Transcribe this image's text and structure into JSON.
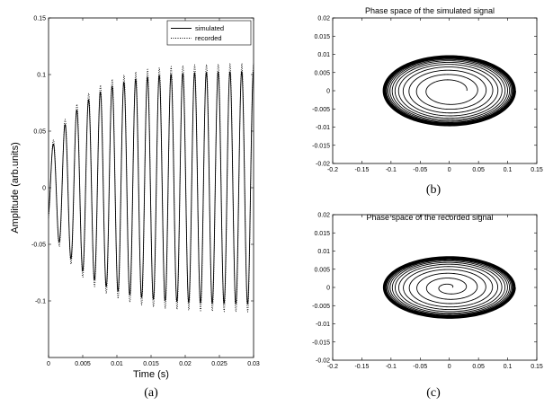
{
  "chart_data": [
    {
      "id": "a",
      "type": "line",
      "caption": "(a)",
      "title": "",
      "xlabel": "Time (s)",
      "ylabel": "Amplitude (arb.units)",
      "xlim": [
        0,
        0.03
      ],
      "ylim": [
        -0.15,
        0.15
      ],
      "xticks": [
        "0",
        "0.005",
        "0.01",
        "0.015",
        "0.02",
        "0.025",
        "0.03"
      ],
      "yticks": [
        "-0.1",
        "-0.05",
        "0",
        "0.05",
        "0.1",
        "0.15"
      ],
      "legend_position": "top-right",
      "series": [
        {
          "name": "simulated",
          "style": "solid",
          "frequency_hz": 580,
          "envelope_start": 0.03,
          "envelope_final": 0.103,
          "envelope_tau_s": 0.0055
        },
        {
          "name": "recorded",
          "style": "dotted",
          "frequency_hz": 580,
          "envelope_start": 0.033,
          "envelope_final": 0.11,
          "envelope_tau_s": 0.0055
        }
      ]
    },
    {
      "id": "b",
      "type": "line",
      "caption": "(b)",
      "title": "Phase space of the simulated signal",
      "xlabel": "",
      "ylabel": "",
      "xlim": [
        -0.2,
        0.15
      ],
      "ylim": [
        -0.02,
        0.02
      ],
      "xticks": [
        "-0.2",
        "-0.15",
        "-0.1",
        "-0.05",
        "0",
        "0.05",
        "0.1",
        "0.15"
      ],
      "yticks": [
        "-0.02",
        "-0.015",
        "-0.01",
        "-0.005",
        "0",
        "0.005",
        "0.01",
        "0.015",
        "0.02"
      ],
      "trajectory": {
        "center": [
          0.0,
          0.0
        ],
        "r_start": 0.03,
        "r_final": 0.115,
        "y_scale": 0.085,
        "turns": 17
      }
    },
    {
      "id": "c",
      "type": "line",
      "caption": "(c)",
      "title": "Phase space of the recorded signal",
      "xlabel": "",
      "ylabel": "",
      "xlim": [
        -0.2,
        0.15
      ],
      "ylim": [
        -0.02,
        0.02
      ],
      "xticks": [
        "-0.2",
        "-0.15",
        "-0.1",
        "-0.05",
        "0",
        "0.05",
        "0.1",
        "0.15"
      ],
      "yticks": [
        "-0.02",
        "-0.015",
        "-0.01",
        "-0.005",
        "0",
        "0.005",
        "0.01",
        "0.015",
        "0.02"
      ],
      "trajectory": {
        "center": [
          0.0,
          0.0
        ],
        "r_start": 0.005,
        "r_final": 0.115,
        "y_scale": 0.075,
        "turns": 17
      }
    }
  ]
}
